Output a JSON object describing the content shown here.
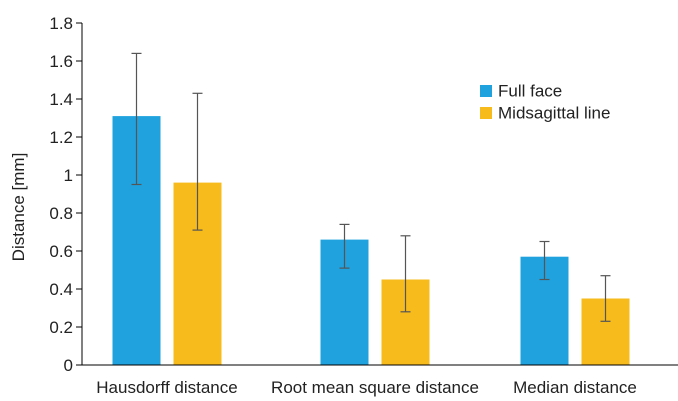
{
  "chart_data": {
    "type": "bar",
    "title": "",
    "xlabel": "",
    "ylabel": "Distance [mm]",
    "ylim": [
      0,
      1.8
    ],
    "yticks": [
      0,
      0.2,
      0.4,
      0.6,
      0.8,
      1,
      1.2,
      1.4,
      1.6,
      1.8
    ],
    "ytick_labels": [
      "0",
      "0.2",
      "0.4",
      "0.6",
      "0.8",
      "1",
      "1.2",
      "1.4",
      "1.6",
      "1.8"
    ],
    "grid": false,
    "legend_position": "top-right",
    "categories": [
      "Hausdorff distance",
      "Root mean square distance",
      "Median distance"
    ],
    "series": [
      {
        "name": "Full face",
        "color": "#1FA2DE",
        "values": [
          1.31,
          0.66,
          0.57
        ],
        "error_low": [
          0.95,
          0.51,
          0.45
        ],
        "error_high": [
          1.64,
          0.74,
          0.65
        ]
      },
      {
        "name": "Midsagittal line",
        "color": "#F7BB1C",
        "values": [
          0.96,
          0.45,
          0.35
        ],
        "error_low": [
          0.71,
          0.28,
          0.23
        ],
        "error_high": [
          1.43,
          0.68,
          0.47
        ]
      }
    ]
  }
}
